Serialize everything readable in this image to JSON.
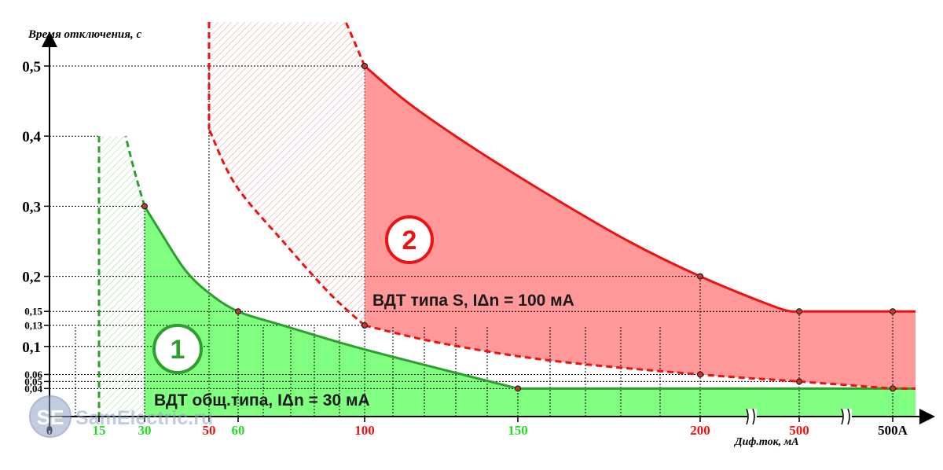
{
  "chart_data": {
    "type": "area",
    "ylabel": "Время отключения, с",
    "xlabel": "Диф.ток, мА",
    "ylim": [
      0,
      0.5
    ],
    "y_ticks": [
      {
        "value": 0.5,
        "label": "0,5",
        "size": "big"
      },
      {
        "value": 0.4,
        "label": "0,4",
        "size": "big"
      },
      {
        "value": 0.3,
        "label": "0,3",
        "size": "big"
      },
      {
        "value": 0.2,
        "label": "0,2",
        "size": "big"
      },
      {
        "value": 0.15,
        "label": "0,15",
        "size": "small"
      },
      {
        "value": 0.13,
        "label": "0,13",
        "size": "small"
      },
      {
        "value": 0.1,
        "label": "0,1",
        "size": "big"
      },
      {
        "value": 0.06,
        "label": "0,06",
        "size": "small"
      },
      {
        "value": 0.05,
        "label": "0,05",
        "size": "small"
      },
      {
        "value": 0.04,
        "label": "0,04",
        "size": "small"
      }
    ],
    "x_ticks": [
      {
        "label": "0",
        "color": "#000000"
      },
      {
        "label": "15",
        "color": "#22dd22"
      },
      {
        "label": "30",
        "color": "#22dd22"
      },
      {
        "label": "50",
        "color": "#ee1111"
      },
      {
        "label": "60",
        "color": "#22dd22"
      },
      {
        "label": "100",
        "color": "#ee1111"
      },
      {
        "label": "150",
        "color": "#22dd22"
      },
      {
        "label": "200",
        "color": "#ee1111"
      },
      {
        "label": "500",
        "color": "#ee1111"
      },
      {
        "label": "500А",
        "color": "#000000"
      }
    ],
    "series": [
      {
        "name": "ВДТ общ.типа, IΔn = 30 мА",
        "badge": "1",
        "color": "#2e9e2e",
        "fill": "#80ff80",
        "points": [
          {
            "x": "30",
            "y": 0.3
          },
          {
            "x": "60",
            "y": 0.15
          },
          {
            "x": "150",
            "y": 0.04
          },
          {
            "x": "500А",
            "y": 0.04
          }
        ],
        "dashed_extension": {
          "x_from": "15",
          "x_to": "30",
          "y_top": 0.4
        }
      },
      {
        "name": "ВДТ типа S, IΔn = 100 мА",
        "badge": "2",
        "color": "#ee1111",
        "fill": "#ff9999",
        "upper_points": [
          {
            "x": "100",
            "y": 0.5
          },
          {
            "x": "200",
            "y": 0.2
          },
          {
            "x": "500",
            "y": 0.15
          },
          {
            "x": "500А",
            "y": 0.15
          }
        ],
        "lower_points": [
          {
            "x": "100",
            "y": 0.13
          },
          {
            "x": "200",
            "y": 0.06
          },
          {
            "x": "500",
            "y": 0.05
          },
          {
            "x": "500А",
            "y": 0.04
          }
        ],
        "dashed_extension": {
          "x_from": "50",
          "x_to": "100",
          "y_top": 0.5
        }
      }
    ],
    "grid": true,
    "axis_break_after": [
      "200",
      "500"
    ]
  },
  "watermark": "SamElectric.ru",
  "watermark_logo": "SE",
  "colors": {
    "green_line": "#2e9e2e",
    "green_fill": "#80ff80",
    "red_line": "#ee1111",
    "red_fill": "#ff9999",
    "grid": "#000000"
  }
}
